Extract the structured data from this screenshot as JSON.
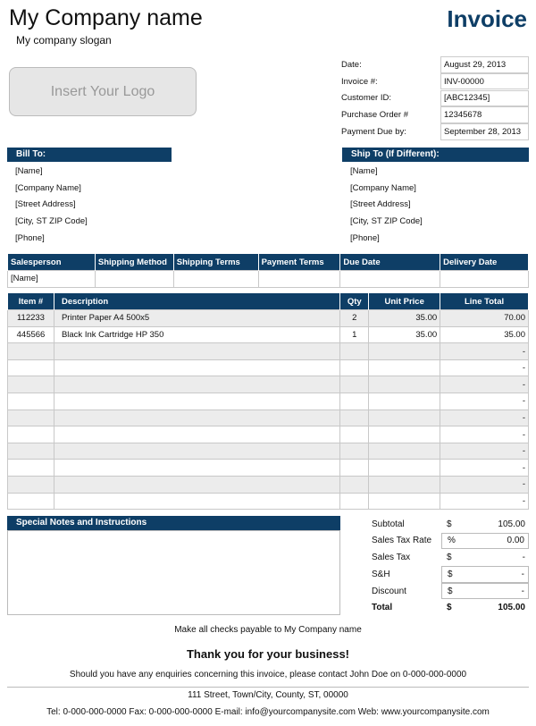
{
  "header": {
    "company": "My Company name",
    "slogan": "My company slogan",
    "title": "Invoice",
    "logo_placeholder": "Insert Your Logo"
  },
  "info": [
    {
      "label": "Date:",
      "value": "August 29, 2013"
    },
    {
      "label": "Invoice #:",
      "value": "INV-00000"
    },
    {
      "label": "Customer ID:",
      "value": "[ABC12345]"
    },
    {
      "label": "Purchase Order #",
      "value": "12345678"
    },
    {
      "label": "Payment Due by:",
      "value": "September 28, 2013"
    }
  ],
  "bill_to": {
    "title": "Bill To:",
    "lines": [
      "[Name]",
      "[Company Name]",
      "[Street Address]",
      "[City, ST  ZIP Code]",
      "[Phone]"
    ]
  },
  "ship_to": {
    "title": "Ship To (If Different):",
    "lines": [
      "[Name]",
      "[Company Name]",
      "[Street Address]",
      "[City, ST  ZIP Code]",
      "[Phone]"
    ]
  },
  "shipping": {
    "headers": [
      "Salesperson",
      "Shipping Method",
      "Shipping Terms",
      "Payment Terms",
      "Due Date",
      "Delivery Date"
    ],
    "values": [
      "[Name]",
      "",
      "",
      "",
      "",
      ""
    ]
  },
  "items": {
    "headers": [
      "Item #",
      "Description",
      "Qty",
      "Unit Price",
      "Line Total"
    ],
    "rows": [
      [
        "112233",
        "Printer Paper A4 500x5",
        "2",
        "35.00",
        "70.00"
      ],
      [
        "445566",
        "Black Ink Cartridge HP 350",
        "1",
        "35.00",
        "35.00"
      ],
      [
        "",
        "",
        "",
        "",
        "-"
      ],
      [
        "",
        "",
        "",
        "",
        "-"
      ],
      [
        "",
        "",
        "",
        "",
        "-"
      ],
      [
        "",
        "",
        "",
        "",
        "-"
      ],
      [
        "",
        "",
        "",
        "",
        "-"
      ],
      [
        "",
        "",
        "",
        "",
        "-"
      ],
      [
        "",
        "",
        "",
        "",
        "-"
      ],
      [
        "",
        "",
        "",
        "",
        "-"
      ],
      [
        "",
        "",
        "",
        "",
        "-"
      ],
      [
        "",
        "",
        "",
        "",
        "-"
      ]
    ]
  },
  "notes": {
    "title": "Special Notes and Instructions"
  },
  "totals": [
    {
      "label": "Subtotal",
      "sym": "$",
      "value": "105.00"
    },
    {
      "label": "Sales Tax Rate",
      "sym": "%",
      "value": "0.00"
    },
    {
      "label": "Sales Tax",
      "sym": "$",
      "value": "-"
    },
    {
      "label": "S&H",
      "sym": "$",
      "value": "-"
    },
    {
      "label": "Discount",
      "sym": "$",
      "value": "-"
    },
    {
      "label": "Total",
      "sym": "$",
      "value": "105.00"
    }
  ],
  "footer": {
    "checks": "Make all checks payable to My Company name",
    "thanks": "Thank you for your business!",
    "enquiries": "Should you have any enquiries concerning this invoice, please contact John Doe on 0-000-000-0000",
    "address": "111 Street, Town/City, County, ST, 00000",
    "contact": "Tel: 0-000-000-0000 Fax: 0-000-000-0000 E-mail: info@yourcompanysite.com Web: www.yourcompanysite.com"
  },
  "colors": {
    "accent": "#0e3e66",
    "row_alt": "#ececec"
  }
}
